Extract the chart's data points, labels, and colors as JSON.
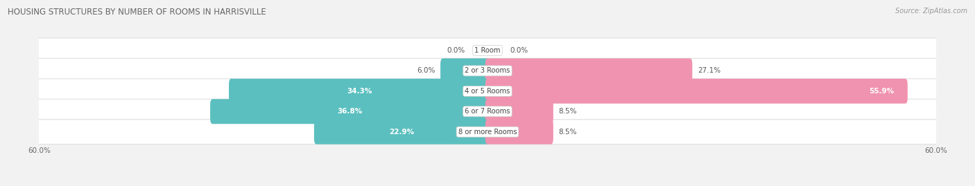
{
  "title": "HOUSING STRUCTURES BY NUMBER OF ROOMS IN HARRISVILLE",
  "source": "Source: ZipAtlas.com",
  "categories": [
    "1 Room",
    "2 or 3 Rooms",
    "4 or 5 Rooms",
    "6 or 7 Rooms",
    "8 or more Rooms"
  ],
  "owner_values": [
    0.0,
    6.0,
    34.3,
    36.8,
    22.9
  ],
  "renter_values": [
    0.0,
    27.1,
    55.9,
    8.5,
    8.5
  ],
  "owner_color": "#5bbfbf",
  "renter_color": "#f093b0",
  "axis_limit": 60.0,
  "bg_color": "#f2f2f2",
  "bar_bg_color": "#e4e4e4",
  "bar_height": 0.62,
  "title_fontsize": 8.5,
  "label_fontsize": 7.5,
  "source_fontsize": 7.0,
  "category_fontsize": 7.2,
  "legend_fontsize": 7.5,
  "owner_label_threshold": 10.0,
  "renter_label_threshold": 10.0
}
